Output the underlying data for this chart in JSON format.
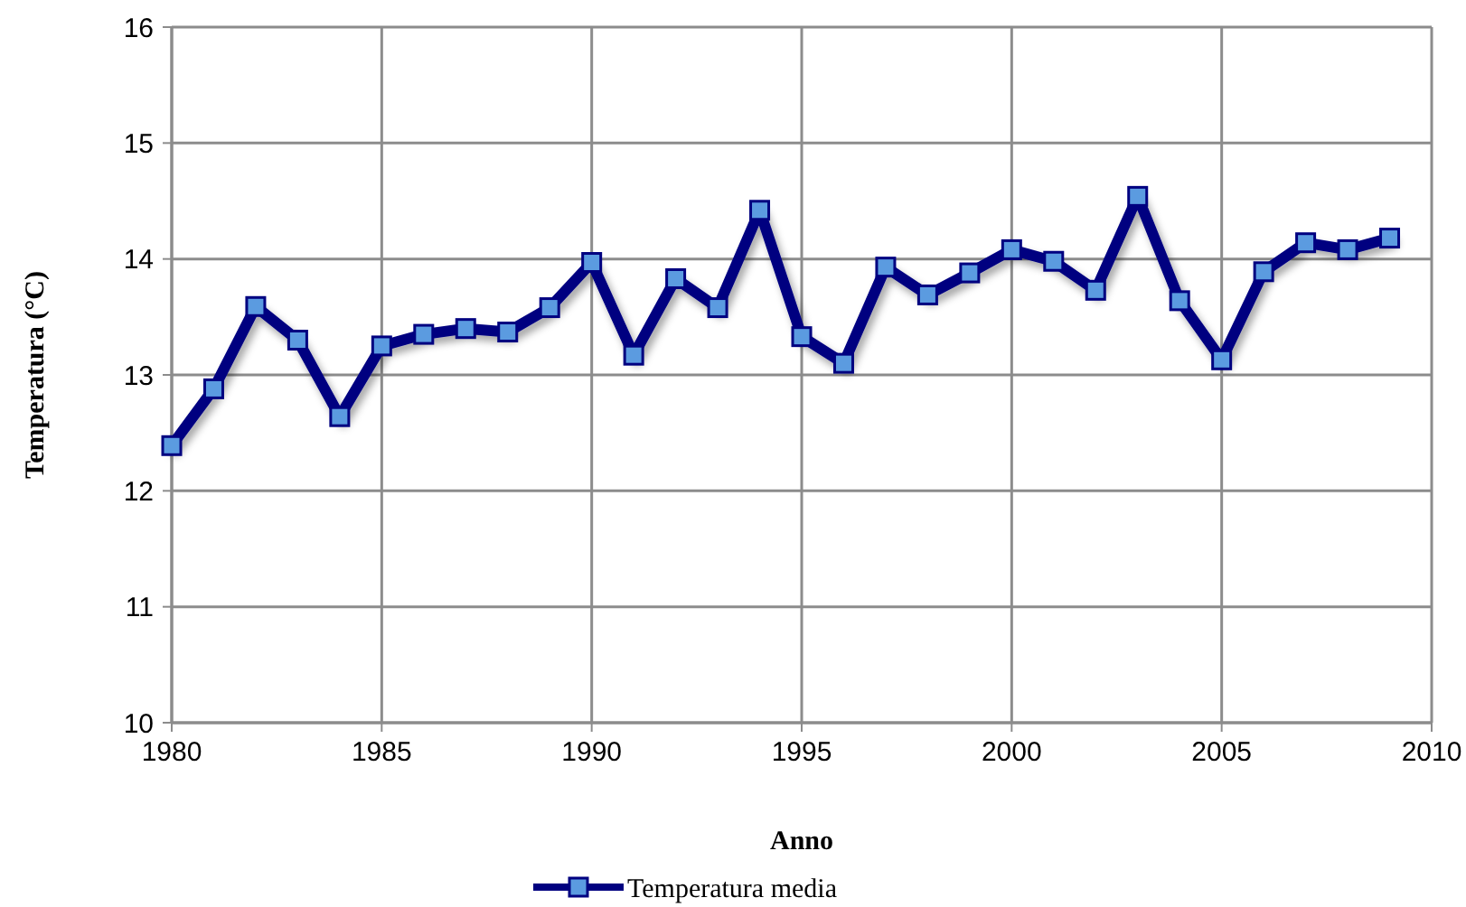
{
  "chart_data": {
    "type": "line",
    "xlabel": "Anno",
    "ylabel": "Temperatura (°C)",
    "x": [
      1980,
      1981,
      1982,
      1983,
      1984,
      1985,
      1986,
      1987,
      1988,
      1989,
      1990,
      1991,
      1992,
      1993,
      1994,
      1995,
      1996,
      1997,
      1998,
      1999,
      2000,
      2001,
      2002,
      2003,
      2004,
      2005,
      2006,
      2007,
      2008,
      2009
    ],
    "series": [
      {
        "name": "Temperatura media",
        "color": "#000080",
        "values": [
          12.39,
          12.88,
          13.59,
          13.3,
          12.64,
          13.25,
          13.35,
          13.4,
          13.37,
          13.58,
          13.97,
          13.17,
          13.83,
          13.58,
          14.42,
          13.33,
          13.1,
          13.93,
          13.69,
          13.88,
          14.08,
          13.98,
          13.73,
          14.54,
          13.64,
          13.13,
          13.89,
          14.14,
          14.08,
          14.18
        ]
      }
    ],
    "xlim": [
      1980,
      2010
    ],
    "xticks": [
      1980,
      1985,
      1990,
      1995,
      2000,
      2005,
      2010
    ],
    "ylim": [
      10,
      16
    ],
    "yticks": [
      10,
      11,
      12,
      13,
      14,
      15,
      16
    ],
    "grid": true,
    "legend": "bottom",
    "marker": "square",
    "line_style": "solid"
  }
}
